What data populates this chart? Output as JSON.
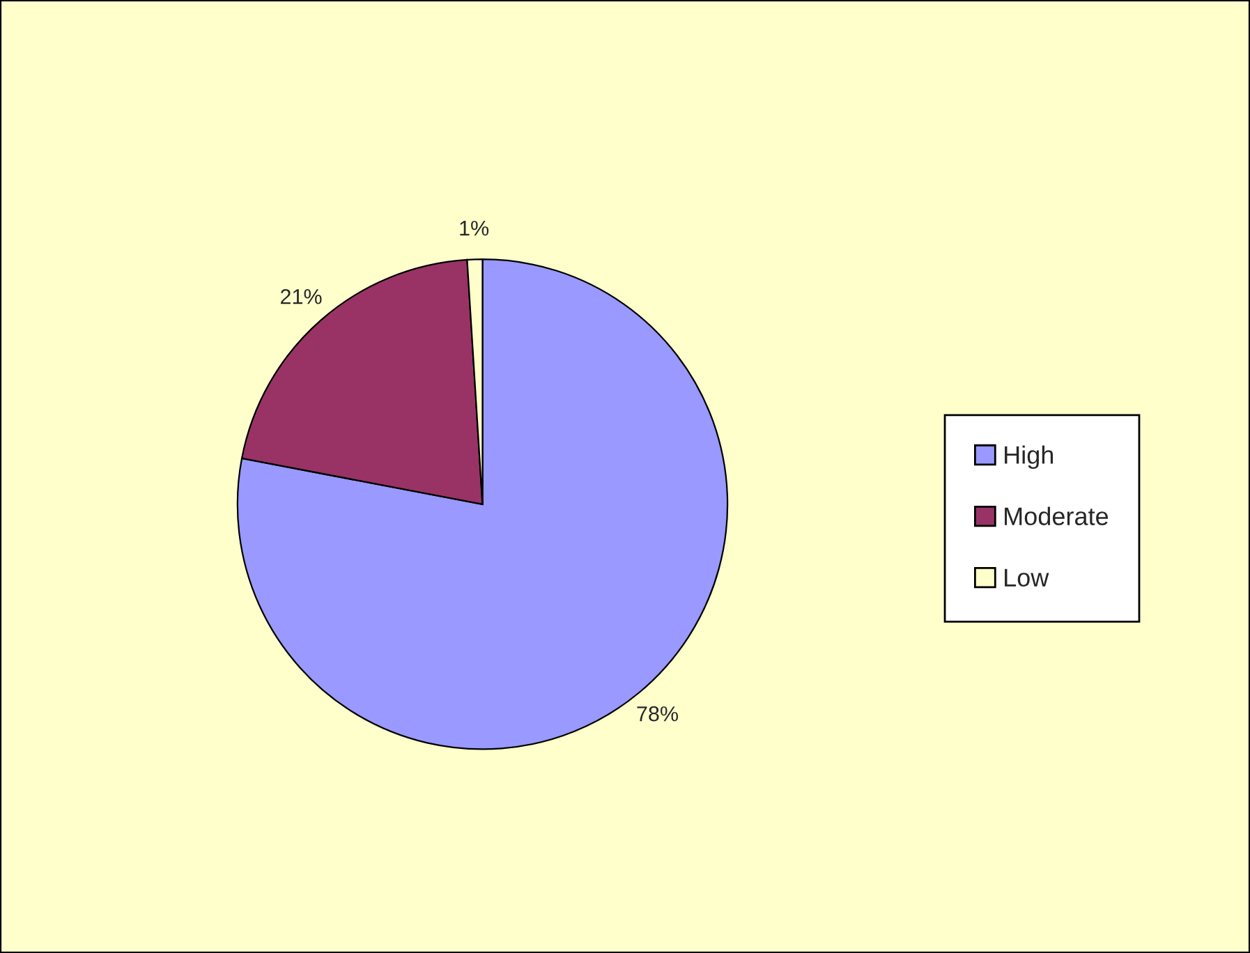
{
  "chart_data": {
    "type": "pie",
    "categories": [
      "High",
      "Moderate",
      "Low"
    ],
    "values": [
      78,
      21,
      1
    ],
    "colors": [
      "#9999ff",
      "#993366",
      "#ffffcc"
    ],
    "value_labels": [
      "78%",
      "21%",
      "1%"
    ],
    "legend": "right"
  }
}
